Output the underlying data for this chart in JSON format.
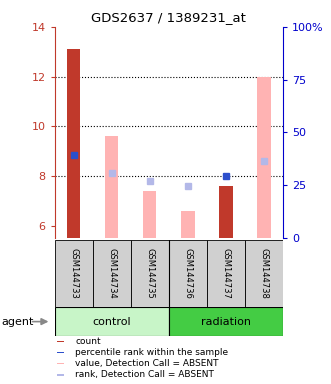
{
  "title": "GDS2637 / 1389231_at",
  "samples": [
    "GSM144733",
    "GSM144734",
    "GSM144735",
    "GSM144736",
    "GSM144737",
    "GSM144738"
  ],
  "ylim_left": [
    5.5,
    14.0
  ],
  "ylim_right": [
    0,
    100
  ],
  "yticks_left": [
    6,
    8,
    10,
    12,
    14
  ],
  "yticks_right": [
    0,
    25,
    50,
    75,
    100
  ],
  "ytick_labels_right": [
    "0",
    "25",
    "50",
    "75",
    "100%"
  ],
  "red_bars": {
    "heights": [
      13.1,
      null,
      null,
      null,
      7.6,
      null
    ],
    "bottoms": [
      5.5,
      null,
      null,
      null,
      5.5,
      null
    ]
  },
  "blue_squares": {
    "values": [
      8.85,
      null,
      null,
      null,
      8.0,
      null
    ],
    "present": [
      true,
      false,
      false,
      false,
      true,
      false
    ]
  },
  "pink_bars": {
    "heights": [
      null,
      9.6,
      7.4,
      6.6,
      null,
      12.0
    ],
    "bottoms": [
      null,
      5.5,
      5.5,
      5.5,
      null,
      5.5
    ]
  },
  "lavender_squares": {
    "values": [
      null,
      8.1,
      7.8,
      7.6,
      null,
      8.6
    ],
    "present": [
      false,
      true,
      true,
      true,
      false,
      true
    ]
  },
  "red_color": "#c0392b",
  "blue_color": "#2c4fcc",
  "pink_color": "#ffb3b3",
  "lavender_color": "#b3b8e8",
  "control_color": "#c8f5c8",
  "radiation_color": "#44cc44",
  "sample_bg": "#d0d0d0",
  "left_tick_color": "#c0392b",
  "right_tick_color": "#0000cc",
  "legend_items": [
    [
      "#c0392b",
      "count"
    ],
    [
      "#2c4fcc",
      "percentile rank within the sample"
    ],
    [
      "#ffb3b3",
      "value, Detection Call = ABSENT"
    ],
    [
      "#b3b8e8",
      "rank, Detection Call = ABSENT"
    ]
  ]
}
